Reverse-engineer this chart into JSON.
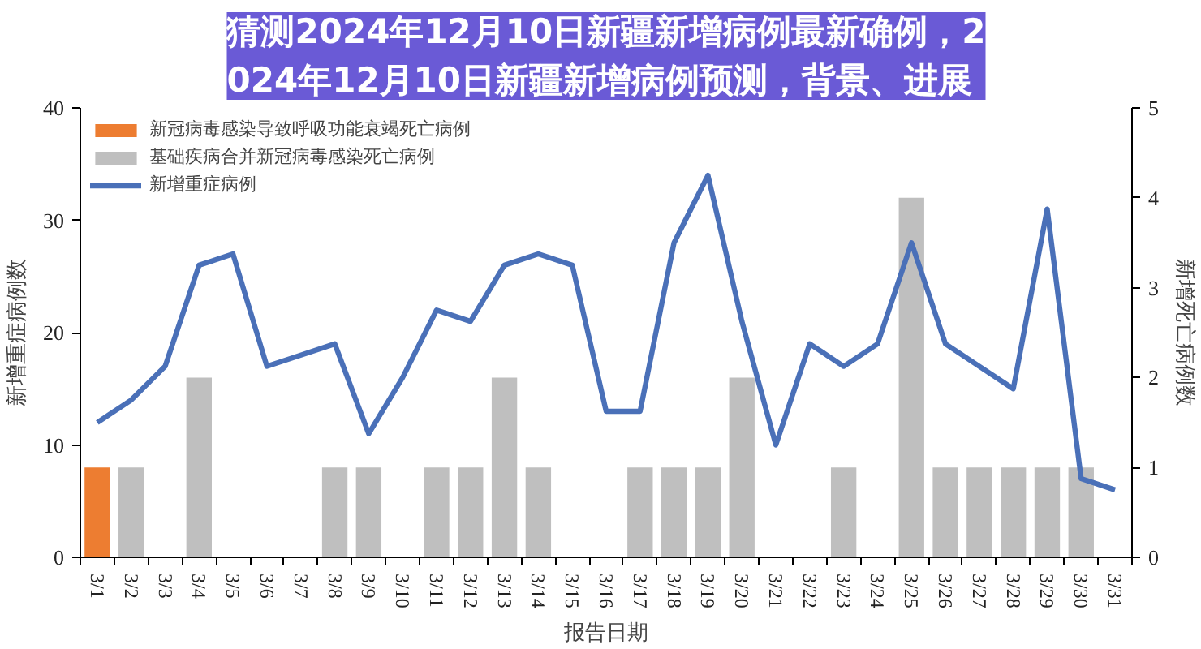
{
  "chart_data": {
    "type": "bar",
    "title": "猜测2024年12月10日新疆新增病例最新确例，2024年12月10日新疆新增病例预测，背景、进展",
    "categories": [
      "3/1",
      "3/2",
      "3/3",
      "3/4",
      "3/5",
      "3/6",
      "3/7",
      "3/8",
      "3/9",
      "3/10",
      "3/11",
      "3/12",
      "3/13",
      "3/14",
      "3/15",
      "3/16",
      "3/17",
      "3/18",
      "3/19",
      "3/20",
      "3/21",
      "3/22",
      "3/23",
      "3/24",
      "3/25",
      "3/26",
      "3/27",
      "3/28",
      "3/29",
      "3/30",
      "3/31"
    ],
    "xlabel": "报告日期",
    "ylabel": "新增重症病例数",
    "y2label": "新增死亡病例数",
    "ylim": [
      0,
      40
    ],
    "yticks": [
      0,
      10,
      20,
      30,
      40
    ],
    "y2lim": [
      0,
      5
    ],
    "y2ticks": [
      0,
      1,
      2,
      3,
      4,
      5
    ],
    "legend": "top left",
    "series": [
      {
        "name": "新冠病毒感染导致呼吸功能衰竭死亡病例",
        "axis": "y2",
        "color": "#ed7d31",
        "values": [
          1,
          null,
          null,
          null,
          null,
          null,
          null,
          null,
          null,
          null,
          null,
          null,
          null,
          null,
          null,
          null,
          null,
          null,
          null,
          null,
          null,
          null,
          null,
          null,
          null,
          null,
          null,
          null,
          null,
          null,
          null
        ]
      },
      {
        "name": "基础疾病合并新冠病毒感染死亡病例",
        "axis": "y2",
        "color": "#bfbfbf",
        "values": [
          null,
          1,
          null,
          2,
          null,
          null,
          null,
          1,
          1,
          null,
          1,
          1,
          2,
          1,
          null,
          null,
          1,
          1,
          1,
          2,
          null,
          null,
          1,
          null,
          4,
          1,
          1,
          1,
          1,
          1,
          null
        ]
      },
      {
        "name": "新增重症病例",
        "type": "line",
        "color": "#4a70b8",
        "values": [
          12,
          14,
          17,
          26,
          27,
          17,
          18,
          19,
          11,
          16,
          22,
          21,
          26,
          27,
          26,
          13,
          13,
          28,
          34,
          21,
          10,
          19,
          17,
          19,
          28,
          19,
          17,
          15,
          31,
          7,
          6
        ]
      }
    ]
  }
}
